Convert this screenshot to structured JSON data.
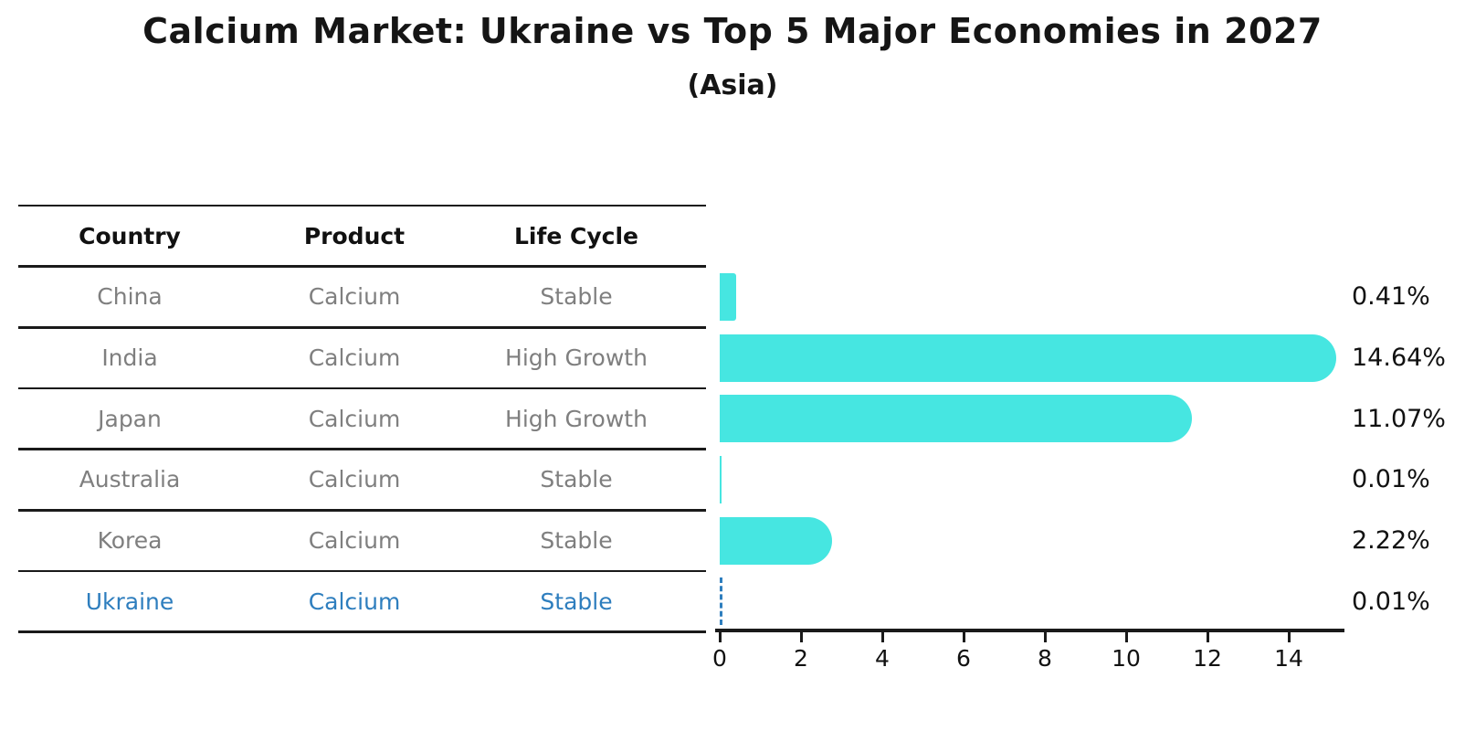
{
  "title": "Calcium Market: Ukraine vs Top 5 Major Economies in 2027",
  "subtitle": "(Asia)",
  "table": {
    "headers": [
      "Country",
      "Product",
      "Life Cycle"
    ],
    "rows": [
      {
        "country": "China",
        "product": "Calcium",
        "life_cycle": "Stable",
        "highlight": false
      },
      {
        "country": "India",
        "product": "Calcium",
        "life_cycle": "High Growth",
        "highlight": false
      },
      {
        "country": "Japan",
        "product": "Calcium",
        "life_cycle": "High Growth",
        "highlight": false
      },
      {
        "country": "Australia",
        "product": "Calcium",
        "life_cycle": "Stable",
        "highlight": false
      },
      {
        "country": "Korea",
        "product": "Calcium",
        "life_cycle": "Stable",
        "highlight": false
      },
      {
        "country": "Ukraine",
        "product": "Calcium",
        "life_cycle": "Stable",
        "highlight": true
      }
    ]
  },
  "chart_data": {
    "type": "bar",
    "orientation": "horizontal",
    "title": "Calcium Market: Ukraine vs Top 5 Major Economies in 2027",
    "subtitle": "(Asia)",
    "categories": [
      "China",
      "India",
      "Japan",
      "Australia",
      "Korea",
      "Ukraine"
    ],
    "values": [
      0.41,
      14.64,
      11.07,
      0.01,
      2.22,
      0.01
    ],
    "value_labels": [
      "0.41%",
      "14.64%",
      "11.07%",
      "0.01%",
      "2.22%",
      "0.01%"
    ],
    "xlabel": "",
    "ylabel": "",
    "xlim": [
      0,
      15.4
    ],
    "x_ticks": [
      0,
      2,
      4,
      6,
      8,
      10,
      12,
      14
    ],
    "grid": false,
    "legend": "none",
    "bar_color": "#46e6e1",
    "highlight_category": "Ukraine",
    "highlight_style": "dashed-outline",
    "highlight_color": "#2e7ebe"
  },
  "colors": {
    "bar": "#46e6e1",
    "highlight_blue": "#2e7ebe",
    "text_black": "#111111",
    "text_gray": "#7f7f7f",
    "line": "#1a1a1a",
    "background": "#ffffff"
  }
}
